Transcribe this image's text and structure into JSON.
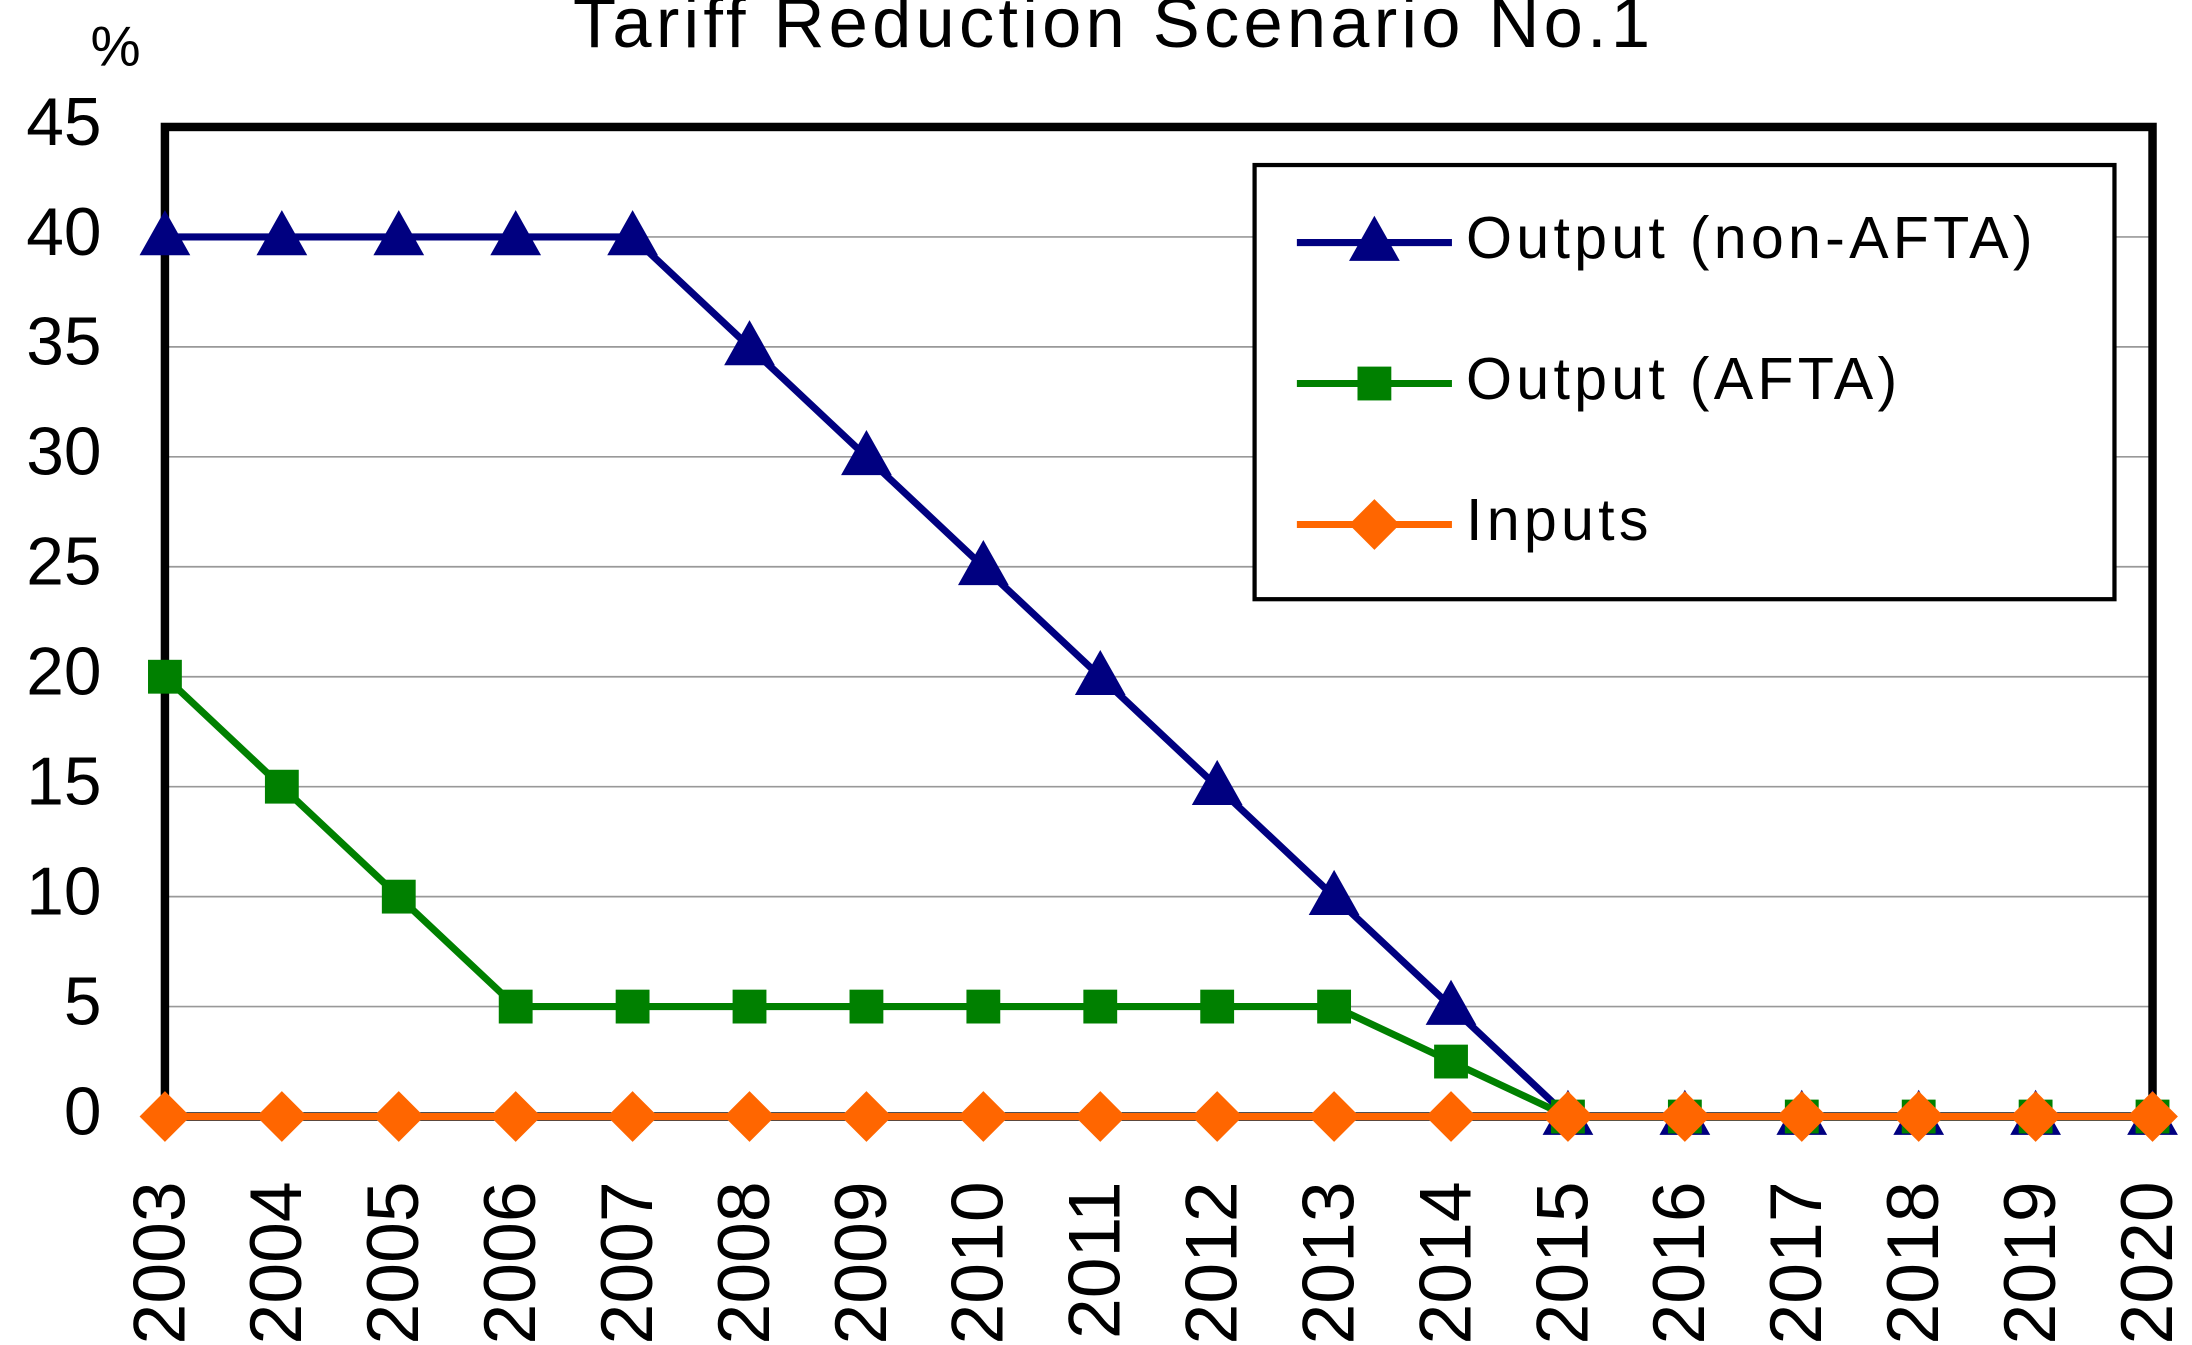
{
  "chart_data": {
    "type": "line",
    "title": "Tariff Reduction Scenario No.1",
    "ylabel": "%",
    "categories": [
      "2003",
      "2004",
      "2005",
      "2006",
      "2007",
      "2008",
      "2009",
      "2010",
      "2011",
      "2012",
      "2013",
      "2014",
      "2015",
      "2016",
      "2017",
      "2018",
      "2019",
      "2020"
    ],
    "series": [
      {
        "name": "Output (non-AFTA)",
        "color": "#000080",
        "marker": "triangle",
        "values": [
          40,
          40,
          40,
          40,
          40,
          35,
          30,
          25,
          20,
          15,
          10,
          5,
          0,
          0,
          0,
          0,
          0,
          0
        ]
      },
      {
        "name": "Output (AFTA)",
        "color": "#008000",
        "marker": "square",
        "values": [
          20,
          15,
          10,
          5,
          5,
          5,
          5,
          5,
          5,
          5,
          5,
          2.5,
          0,
          0,
          0,
          0,
          0,
          0
        ]
      },
      {
        "name": "Inputs",
        "color": "#ff6600",
        "marker": "diamond",
        "values": [
          0,
          0,
          0,
          0,
          0,
          0,
          0,
          0,
          0,
          0,
          0,
          0,
          0,
          0,
          0,
          0,
          0,
          0
        ]
      }
    ],
    "ylim": [
      0,
      45
    ],
    "yticks": [
      0,
      5,
      10,
      15,
      20,
      25,
      30,
      35,
      40,
      45
    ],
    "grid": true,
    "legend": "upper right"
  }
}
